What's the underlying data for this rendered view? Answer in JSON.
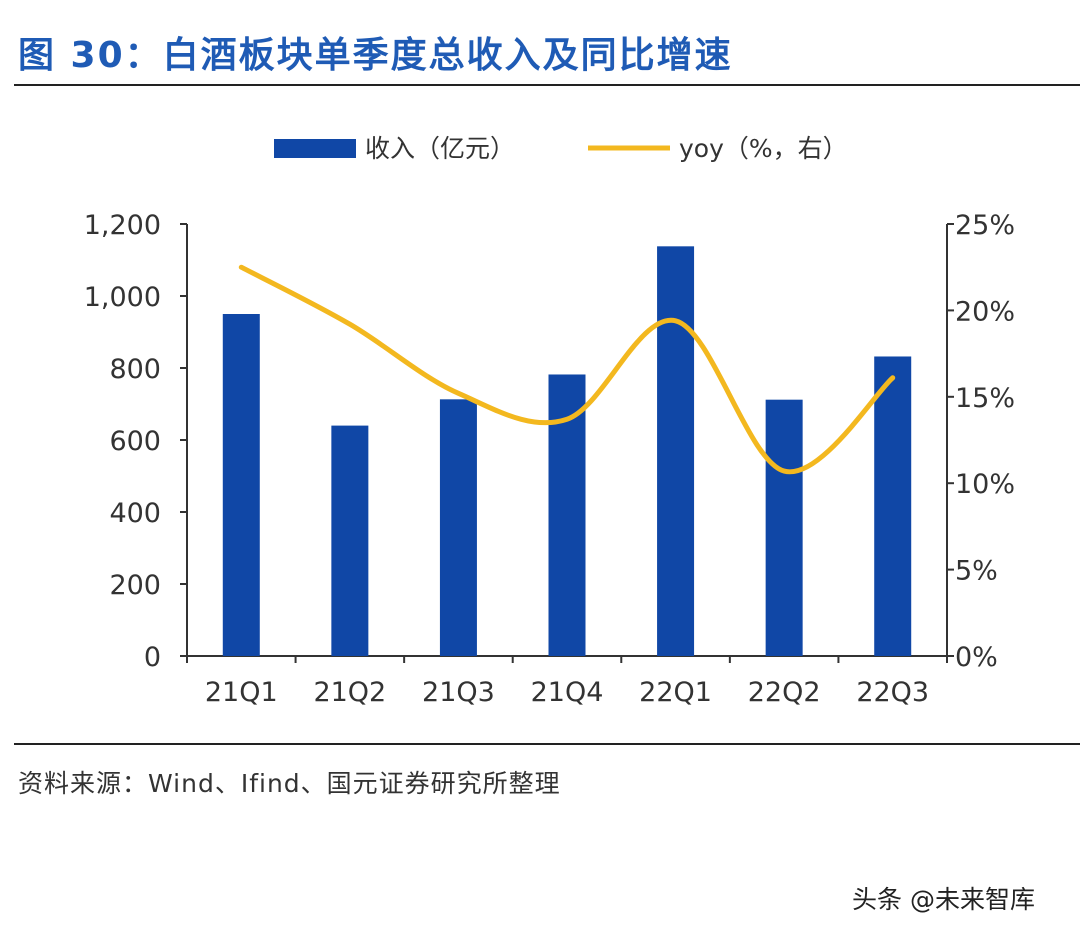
{
  "title": "图 30：白酒板块单季度总收入及同比增速",
  "source": "资料来源：Wind、Ifind、国元证券研究所整理",
  "watermark": "头条 @未来智库",
  "colors": {
    "bar": "#1047a6",
    "line": "#f3b81f",
    "title": "#1f5bb5"
  },
  "chart_data": {
    "type": "bar",
    "categories": [
      "21Q1",
      "21Q2",
      "21Q3",
      "21Q4",
      "22Q1",
      "22Q2",
      "22Q3"
    ],
    "series": [
      {
        "name": "收入（亿元）",
        "kind": "bar",
        "axis": "left",
        "values": [
          950,
          640,
          713,
          782,
          1138,
          712,
          832
        ]
      },
      {
        "name": "yoy（%，右）",
        "kind": "line",
        "axis": "right",
        "values": [
          22.5,
          19.2,
          15.2,
          13.7,
          19.4,
          10.7,
          16.1
        ]
      }
    ],
    "y_left": {
      "min": 0,
      "max": 1200,
      "ticks": [
        0,
        200,
        400,
        600,
        800,
        1000,
        1200
      ],
      "tick_labels": [
        "0",
        "200",
        "400",
        "600",
        "800",
        "1,000",
        "1,200"
      ]
    },
    "y_right": {
      "min": 0,
      "max": 25,
      "ticks": [
        0,
        5,
        10,
        15,
        20,
        25
      ],
      "tick_labels": [
        "0%",
        "5%",
        "10%",
        "15%",
        "20%",
        "25%"
      ]
    },
    "legend": [
      "收入（亿元）",
      "yoy（%，右）"
    ],
    "legend_position": "top",
    "grid": false
  }
}
